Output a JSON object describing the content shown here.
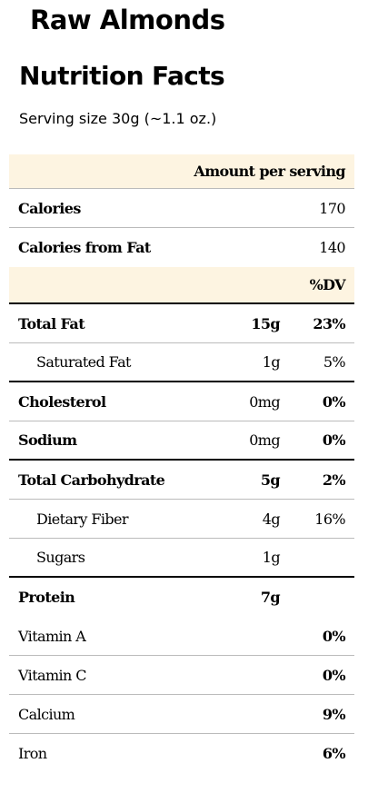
{
  "product_name": "Raw Almonds",
  "panel_title": "Nutrition Facts",
  "serving_size": "Serving size 30g (~1.1 oz.)",
  "amount_header": "Amount per serving",
  "calories": {
    "label": "Calories",
    "value": "170"
  },
  "calories_fat": {
    "label": "Calories from Fat",
    "value": "140"
  },
  "dv_header": "%DV",
  "nutrients": [
    {
      "label": "Total Fat",
      "amount": "15g",
      "dv": "23%"
    },
    {
      "label": "Saturated Fat",
      "amount": "1g",
      "dv": "5%"
    },
    {
      "label": "Cholesterol",
      "amount": "0mg",
      "dv": "0%"
    },
    {
      "label": "Sodium",
      "amount": "0mg",
      "dv": "0%"
    },
    {
      "label": "Total Carbohydrate",
      "amount": "5g",
      "dv": "2%"
    },
    {
      "label": "Dietary Fiber",
      "amount": "4g",
      "dv": "16%"
    },
    {
      "label": "Sugars",
      "amount": "1g",
      "dv": ""
    },
    {
      "label": "Protein",
      "amount": "7g",
      "dv": ""
    }
  ],
  "vitamins": [
    {
      "label": "Vitamin A",
      "dv": "0%"
    },
    {
      "label": "Vitamin C",
      "dv": "0%"
    },
    {
      "label": "Calcium",
      "dv": "9%"
    },
    {
      "label": "Iron",
      "dv": "6%"
    }
  ],
  "colors": {
    "header_background": "#fdf4e1",
    "rule": "#000000",
    "thin_rule": "#bbbbbb"
  }
}
